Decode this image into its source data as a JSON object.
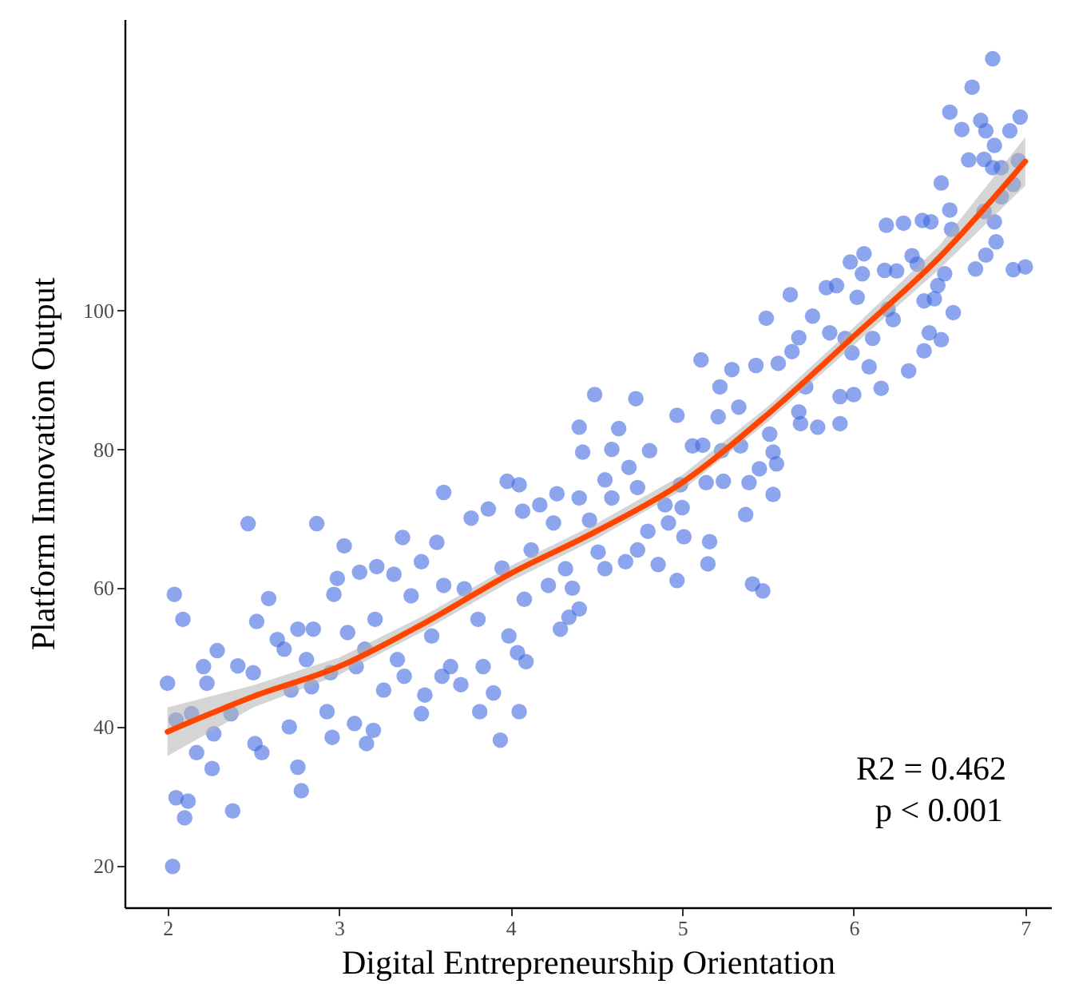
{
  "chart_data": {
    "type": "scatter",
    "xlabel": "Digital Entrepreneurship Orientation",
    "ylabel": "Platform Innovation Output",
    "xlim": [
      1.75,
      7.15
    ],
    "ylim": [
      14,
      142
    ],
    "xticks": [
      2,
      3,
      4,
      5,
      6,
      7
    ],
    "yticks": [
      20,
      40,
      60,
      80,
      100
    ],
    "grid": false,
    "annotations": [
      "R2 = 0.462",
      "p < 0.001"
    ],
    "series": [
      {
        "type": "scatter",
        "color": "#4169e1",
        "marker": "circle",
        "x": [
          2.0,
          2.03,
          2.04,
          2.09,
          2.05,
          2.05,
          2.12,
          2.1,
          2.14,
          2.17,
          2.21,
          2.23,
          2.29,
          2.27,
          2.26,
          2.38,
          2.41,
          2.37,
          2.47,
          2.52,
          2.5,
          2.51,
          2.59,
          2.55,
          2.64,
          2.68,
          2.71,
          2.72,
          2.76,
          2.78,
          2.76,
          2.81,
          2.85,
          2.87,
          2.84,
          2.93,
          2.96,
          2.97,
          2.99,
          2.95,
          3.03,
          3.05,
          3.09,
          3.1,
          3.12,
          3.16,
          3.2,
          3.15,
          3.21,
          3.22,
          3.26,
          3.32,
          3.34,
          3.37,
          3.38,
          3.42,
          3.48,
          3.48,
          3.5,
          3.54,
          3.57,
          3.6,
          3.61,
          3.61,
          3.65,
          3.71,
          3.73,
          3.77,
          3.82,
          3.81,
          3.84,
          3.87,
          3.9,
          3.94,
          3.95,
          3.98,
          3.99,
          4.04,
          4.05,
          4.05,
          4.07,
          4.08,
          4.09,
          4.12,
          4.17,
          4.22,
          4.25,
          4.27,
          4.29,
          4.32,
          4.34,
          4.36,
          4.4,
          4.4,
          4.42,
          4.4,
          4.46,
          4.49,
          4.51,
          4.55,
          4.55,
          4.59,
          4.59,
          4.63,
          4.67,
          4.69,
          4.73,
          4.74,
          4.74,
          4.8,
          4.81,
          4.86,
          4.9,
          4.92,
          4.97,
          4.97,
          4.99,
          5.0,
          5.01,
          5.06,
          5.11,
          5.14,
          5.15,
          5.16,
          5.12,
          5.21,
          5.22,
          5.24,
          5.23,
          5.29,
          5.33,
          5.34,
          5.37,
          5.41,
          5.47,
          5.39,
          5.43,
          5.49,
          5.45,
          5.51,
          5.53,
          5.55,
          5.53,
          5.56,
          5.63,
          5.68,
          5.64,
          5.68,
          5.69,
          5.72,
          5.76,
          5.79,
          5.84,
          5.86,
          5.9,
          5.92,
          5.92,
          5.95,
          5.98,
          5.99,
          6.0,
          6.02,
          6.05,
          6.06,
          6.09,
          6.11,
          6.16,
          6.19,
          6.18,
          6.2,
          6.23,
          6.25,
          6.29,
          6.32,
          6.34,
          6.37,
          6.4,
          6.41,
          6.41,
          6.44,
          6.45,
          6.47,
          6.49,
          6.51,
          6.51,
          6.53,
          6.56,
          6.56,
          6.58,
          6.57,
          6.63,
          6.67,
          6.69,
          6.71,
          6.74,
          6.76,
          6.76,
          6.77,
          6.77,
          6.81,
          6.81,
          6.82,
          6.82,
          6.83,
          6.86,
          6.86,
          6.91,
          6.93,
          6.93,
          6.97,
          7.0,
          6.96
        ],
        "values": [
          46.3,
          19.9,
          59.1,
          55.5,
          41.0,
          29.8,
          29.3,
          26.9,
          41.9,
          36.3,
          48.7,
          46.3,
          51.0,
          39.0,
          34.0,
          27.9,
          48.8,
          41.9,
          69.3,
          55.2,
          47.8,
          37.6,
          58.5,
          36.3,
          52.6,
          51.2,
          40.0,
          45.3,
          54.1,
          30.8,
          34.2,
          49.7,
          54.1,
          69.3,
          45.8,
          42.2,
          38.5,
          59.1,
          61.4,
          47.8,
          66.1,
          53.6,
          40.5,
          48.7,
          62.3,
          37.6,
          39.5,
          51.2,
          55.5,
          63.1,
          45.3,
          62.0,
          49.7,
          67.3,
          47.3,
          58.9,
          63.8,
          41.9,
          44.6,
          53.1,
          66.6,
          47.3,
          73.8,
          60.4,
          48.7,
          46.1,
          59.9,
          70.1,
          42.2,
          55.5,
          48.7,
          71.4,
          44.9,
          38.1,
          62.9,
          75.4,
          53.1,
          50.7,
          42.2,
          74.9,
          71.1,
          58.4,
          49.4,
          65.5,
          72.0,
          60.4,
          69.4,
          73.6,
          54.1,
          62.8,
          55.8,
          60.0,
          57.0,
          83.2,
          79.6,
          73.0,
          69.8,
          87.9,
          65.2,
          62.8,
          75.6,
          73.0,
          80.0,
          83.0,
          63.8,
          77.4,
          87.3,
          74.5,
          65.5,
          68.2,
          79.8,
          63.4,
          72.0,
          69.4,
          84.9,
          61.1,
          74.9,
          71.6,
          67.4,
          80.5,
          92.9,
          75.2,
          63.5,
          66.7,
          80.6,
          84.7,
          89.0,
          75.4,
          79.8,
          91.5,
          86.1,
          80.5,
          70.6,
          60.6,
          59.6,
          75.2,
          92.1,
          98.9,
          77.2,
          82.2,
          79.6,
          77.9,
          73.5,
          92.4,
          102.3,
          96.1,
          94.1,
          85.4,
          83.7,
          89.0,
          99.2,
          83.2,
          103.3,
          96.8,
          103.6,
          83.7,
          87.6,
          96.0,
          107.0,
          93.9,
          87.9,
          101.9,
          105.3,
          108.2,
          91.9,
          96.0,
          88.8,
          112.3,
          105.8,
          100.2,
          98.7,
          105.7,
          112.6,
          91.3,
          107.9,
          106.7,
          113.0,
          101.4,
          94.2,
          96.8,
          112.8,
          101.7,
          103.6,
          118.4,
          95.8,
          105.3,
          128.6,
          114.5,
          99.7,
          111.7,
          126.1,
          121.7,
          132.2,
          106.0,
          127.4,
          114.3,
          121.8,
          108.0,
          125.9,
          120.6,
          136.3,
          112.8,
          123.8,
          109.9,
          116.4,
          120.6,
          125.9,
          105.9,
          118.2,
          127.9,
          106.3,
          121.6
        ]
      },
      {
        "type": "line",
        "color": "#ff4500",
        "x": [
          2,
          2.5,
          3,
          3.5,
          4,
          4.5,
          5,
          5.5,
          6,
          6.5,
          7
        ],
        "values": [
          39.3,
          44.4,
          48.7,
          55.0,
          62.1,
          68.2,
          75.2,
          85.1,
          96.3,
          107.7,
          121.5
        ],
        "lower": [
          35.8,
          42.8,
          47.5,
          53.9,
          61.0,
          67.1,
          74.1,
          84.0,
          95.0,
          106.0,
          118.0
        ],
        "upper": [
          42.8,
          46.0,
          50.0,
          56.1,
          63.2,
          69.3,
          76.3,
          86.2,
          97.6,
          109.4,
          125.0
        ]
      }
    ]
  }
}
